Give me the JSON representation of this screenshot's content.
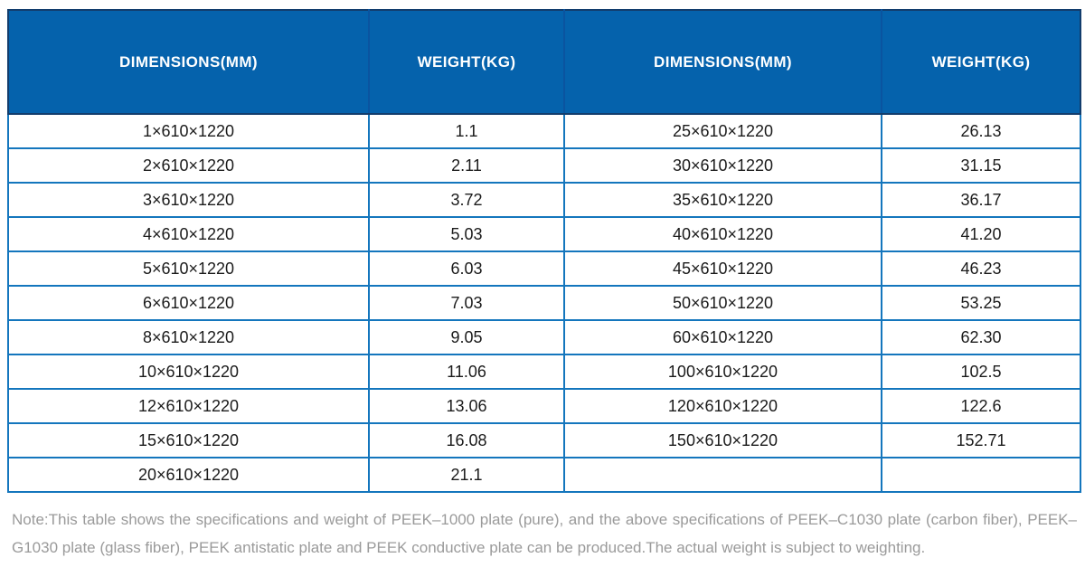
{
  "header": {
    "columns": [
      "DIMENSIONS(MM)",
      "WEIGHT(KG)",
      "DIMENSIONS(MM)",
      "WEIGHT(KG)"
    ]
  },
  "table": {
    "rows": [
      [
        "1×610×1220",
        "1.1",
        "25×610×1220",
        "26.13"
      ],
      [
        "2×610×1220",
        "2.11",
        "30×610×1220",
        "31.15"
      ],
      [
        "3×610×1220",
        "3.72",
        "35×610×1220",
        "36.17"
      ],
      [
        "4×610×1220",
        "5.03",
        "40×610×1220",
        "41.20"
      ],
      [
        "5×610×1220",
        "6.03",
        "45×610×1220",
        "46.23"
      ],
      [
        "6×610×1220",
        "7.03",
        "50×610×1220",
        "53.25"
      ],
      [
        "8×610×1220",
        "9.05",
        "60×610×1220",
        "62.30"
      ],
      [
        "10×610×1220",
        "11.06",
        "100×610×1220",
        "102.5"
      ],
      [
        "12×610×1220",
        "13.06",
        "120×610×1220",
        "122.6"
      ],
      [
        "15×610×1220",
        "16.08",
        "150×610×1220",
        "152.71"
      ],
      [
        "20×610×1220",
        "21.1",
        "",
        ""
      ]
    ]
  },
  "note": {
    "text": "Note:This table shows the specifications and weight of PEEK–1000 plate (pure), and the above specifications of PEEK–C1030 plate (carbon fiber), PEEK–G1030 plate (glass fiber), PEEK antistatic plate and PEEK conductive plate can be produced.The actual weight is subject to weighting."
  },
  "colors": {
    "header_bg": "#0562ac",
    "header_outline": "#123d6d",
    "header_divider": "#0a54a0",
    "grid_border": "#1476bd",
    "cell_text": "#1b1b1b",
    "note_text": "#9a9a9a"
  }
}
